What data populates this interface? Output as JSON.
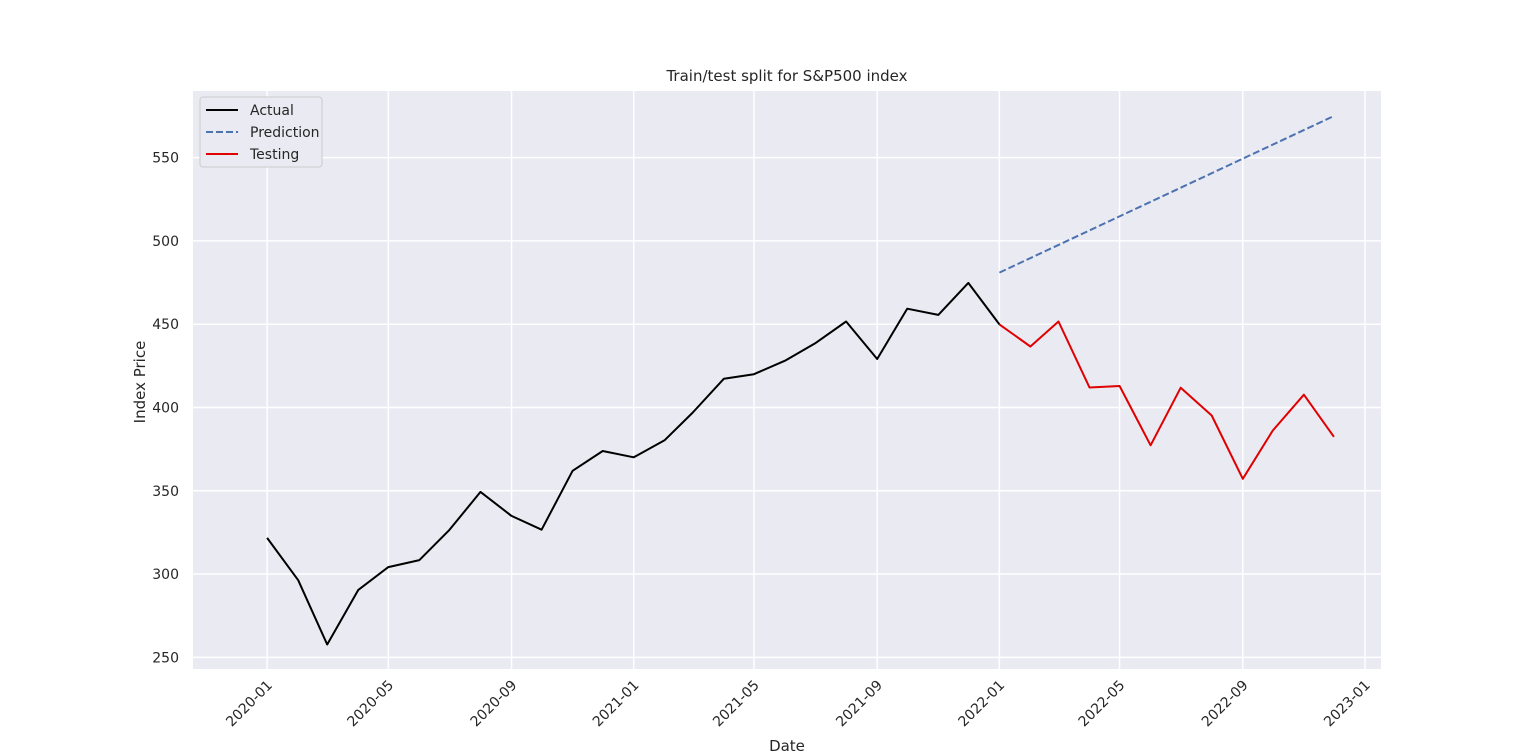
{
  "chart_data": {
    "type": "line",
    "title": "Train/test split for S&P500 index",
    "xlabel": "Date",
    "ylabel": "Index Price",
    "x_ticks": [
      "2020-01",
      "2020-05",
      "2020-09",
      "2021-01",
      "2021-05",
      "2021-09",
      "2022-01",
      "2022-05",
      "2022-09",
      "2023-01"
    ],
    "y_ticks": [
      250,
      300,
      350,
      400,
      450,
      500,
      550
    ],
    "xlim": [
      "2019-10-19",
      "2023-01-17"
    ],
    "ylim": [
      243,
      590
    ],
    "grid": true,
    "legend_position": "top-left",
    "series": [
      {
        "name": "Actual",
        "color": "#000000",
        "style": "solid",
        "points": [
          [
            "2020-01-01",
            321.7
          ],
          [
            "2020-02-01",
            296.3
          ],
          [
            "2020-03-01",
            257.7
          ],
          [
            "2020-04-01",
            290.5
          ],
          [
            "2020-05-01",
            304.2
          ],
          [
            "2020-06-01",
            308.4
          ],
          [
            "2020-07-01",
            326.5
          ],
          [
            "2020-08-01",
            349.3
          ],
          [
            "2020-09-01",
            334.9
          ],
          [
            "2020-10-01",
            326.6
          ],
          [
            "2020-11-01",
            362.0
          ],
          [
            "2020-12-01",
            373.9
          ],
          [
            "2021-01-01",
            370.1
          ],
          [
            "2021-02-01",
            380.4
          ],
          [
            "2021-03-01",
            397.0
          ],
          [
            "2021-04-01",
            417.3
          ],
          [
            "2021-05-01",
            420.0
          ],
          [
            "2021-06-01",
            428.1
          ],
          [
            "2021-07-01",
            438.5
          ],
          [
            "2021-08-01",
            451.6
          ],
          [
            "2021-09-01",
            429.1
          ],
          [
            "2021-10-01",
            459.3
          ],
          [
            "2021-11-01",
            455.6
          ],
          [
            "2021-12-01",
            474.8
          ],
          [
            "2022-01-01",
            449.9
          ]
        ]
      },
      {
        "name": "Prediction",
        "color": "#4c72b0",
        "style": "dashed",
        "points": [
          [
            "2022-01-01",
            481.0
          ],
          [
            "2022-12-01",
            575.0
          ]
        ]
      },
      {
        "name": "Testing",
        "color": "#e00000",
        "style": "solid",
        "points": [
          [
            "2022-01-01",
            449.9
          ],
          [
            "2022-02-01",
            436.6
          ],
          [
            "2022-03-01",
            451.6
          ],
          [
            "2022-04-01",
            412.0
          ],
          [
            "2022-05-01",
            412.9
          ],
          [
            "2022-06-01",
            377.3
          ],
          [
            "2022-07-01",
            411.9
          ],
          [
            "2022-08-01",
            395.2
          ],
          [
            "2022-09-01",
            357.2
          ],
          [
            "2022-10-01",
            386.2
          ],
          [
            "2022-11-01",
            407.7
          ],
          [
            "2022-12-01",
            382.4
          ]
        ]
      }
    ]
  }
}
